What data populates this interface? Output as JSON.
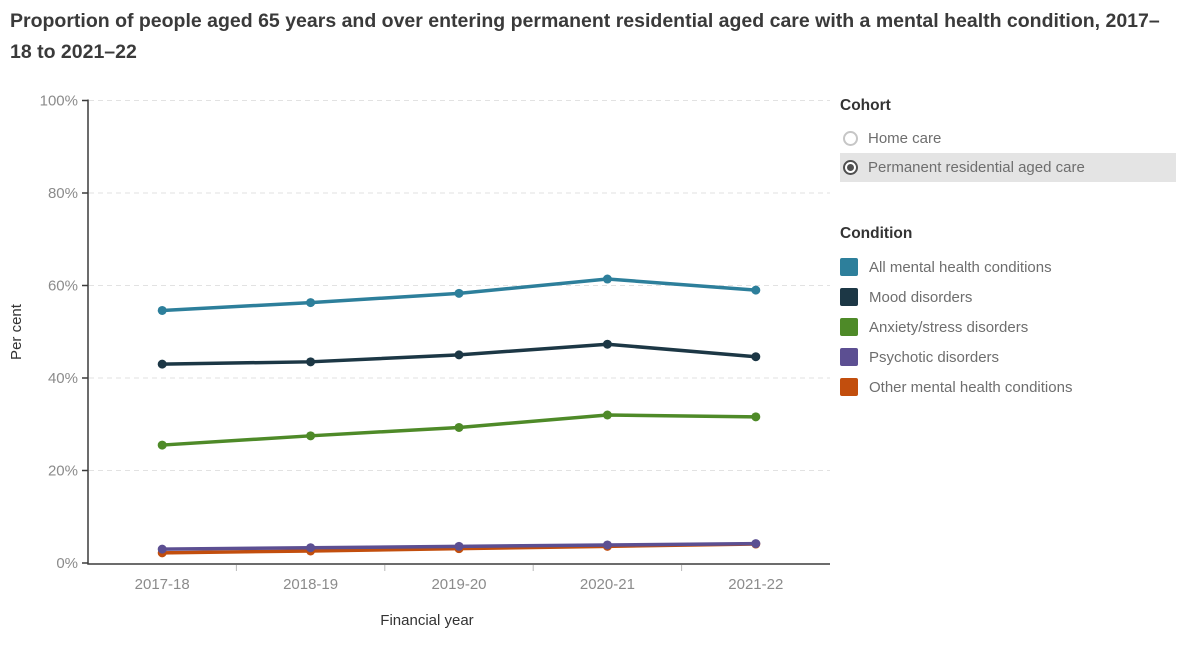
{
  "title": "Proportion of people aged 65 years and over entering permanent residential aged care with a mental health condition, 2017–18 to 2021–22",
  "cohort": {
    "header": "Cohort",
    "options": [
      {
        "label": "Home care",
        "selected": false
      },
      {
        "label": "Permanent residential aged care",
        "selected": true
      }
    ]
  },
  "condition": {
    "header": "Condition",
    "items": [
      {
        "label": "All mental health conditions",
        "color": "#2D7F9B"
      },
      {
        "label": "Mood disorders",
        "color": "#1C3745"
      },
      {
        "label": "Anxiety/stress disorders",
        "color": "#4E8A28"
      },
      {
        "label": "Psychotic disorders",
        "color": "#5C4F92"
      },
      {
        "label": "Other mental health conditions",
        "color": "#C24E0D"
      }
    ]
  },
  "chart_data": {
    "type": "line",
    "title": "Proportion of people aged 65 years and over entering permanent residential aged care with a mental health condition, 2017–18 to 2021–22",
    "categories": [
      "2017-18",
      "2018-19",
      "2019-20",
      "2020-21",
      "2021-22"
    ],
    "series": [
      {
        "name": "All mental health conditions",
        "color": "#2D7F9B",
        "values": [
          54.6,
          56.3,
          58.3,
          61.4,
          59.0
        ]
      },
      {
        "name": "Mood disorders",
        "color": "#1C3745",
        "values": [
          43.0,
          43.5,
          45.0,
          47.3,
          44.6
        ]
      },
      {
        "name": "Anxiety/stress disorders",
        "color": "#4E8A28",
        "values": [
          25.5,
          27.5,
          29.3,
          32.0,
          31.6
        ]
      },
      {
        "name": "Psychotic disorders",
        "color": "#5C4F92",
        "values": [
          3.0,
          3.3,
          3.6,
          3.9,
          4.2
        ]
      },
      {
        "name": "Other mental health conditions",
        "color": "#C24E0D",
        "values": [
          2.2,
          2.6,
          3.1,
          3.6,
          4.1
        ]
      }
    ],
    "xlabel": "Financial year",
    "ylabel": "Per cent",
    "ylim": [
      0,
      100
    ],
    "yticks": [
      0,
      20,
      40,
      60,
      80,
      100
    ],
    "ytick_format": "percent",
    "grid": "horizontal-dashed",
    "legend_position": "right",
    "marker": "circle"
  },
  "colors": {
    "axis": "#3c3c3c",
    "grid": "#e2e2e2",
    "tick_label": "#8b8b8b",
    "selected_highlight": "#e4e4e4"
  }
}
